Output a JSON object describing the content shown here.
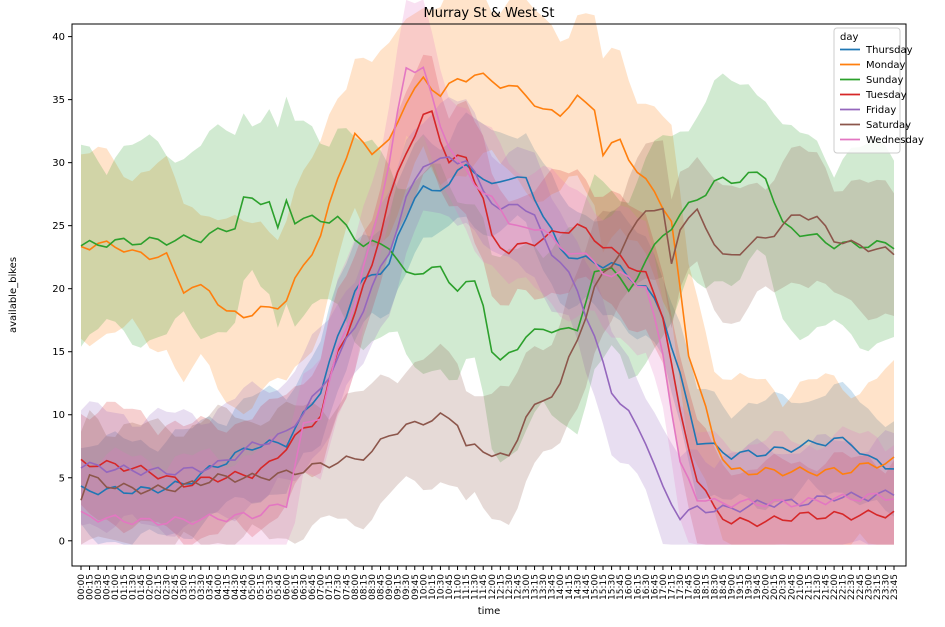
{
  "chart_data": {
    "type": "line",
    "title": "Murray St & West St",
    "xlabel": "time",
    "ylabel": "available_bikes",
    "ylim": [
      -2,
      41
    ],
    "y_ticks": [
      0,
      5,
      10,
      15,
      20,
      25,
      30,
      35,
      40
    ],
    "grid": false,
    "legend": {
      "title": "day",
      "placement": "top-right"
    },
    "x_tick_labels": [
      "00:00",
      "00:15",
      "00:30",
      "00:45",
      "01:00",
      "01:15",
      "01:30",
      "01:45",
      "02:00",
      "02:15",
      "02:30",
      "02:45",
      "03:00",
      "03:15",
      "03:30",
      "03:45",
      "04:00",
      "04:15",
      "04:30",
      "04:45",
      "05:00",
      "05:15",
      "05:30",
      "05:45",
      "06:00",
      "06:15",
      "06:30",
      "06:45",
      "07:00",
      "07:15",
      "07:30",
      "07:45",
      "08:00",
      "08:15",
      "08:30",
      "08:45",
      "09:00",
      "09:15",
      "09:30",
      "09:45",
      "10:00",
      "10:15",
      "10:30",
      "10:45",
      "11:00",
      "11:15",
      "11:30",
      "11:45",
      "12:00",
      "12:15",
      "12:30",
      "12:45",
      "13:00",
      "13:15",
      "13:30",
      "13:45",
      "14:00",
      "14:15",
      "14:30",
      "14:45",
      "15:00",
      "15:15",
      "15:30",
      "15:45",
      "16:00",
      "16:15",
      "16:30",
      "16:45",
      "17:00",
      "17:15",
      "17:30",
      "17:45",
      "18:00",
      "18:15",
      "18:30",
      "18:45",
      "19:00",
      "19:15",
      "19:30",
      "19:45",
      "20:00",
      "20:15",
      "20:30",
      "20:45",
      "21:00",
      "21:15",
      "21:30",
      "21:45",
      "22:00",
      "22:15",
      "22:30",
      "22:45",
      "23:00",
      "23:15",
      "23:30",
      "23:45"
    ],
    "series": [
      {
        "name": "Thursday",
        "color": "#1f77b4",
        "anchors": [
          [
            0,
            4.0
          ],
          [
            8,
            4.0
          ],
          [
            12,
            4.5
          ],
          [
            20,
            7.5
          ],
          [
            24,
            7.8
          ],
          [
            28,
            12
          ],
          [
            32,
            20
          ],
          [
            36,
            22
          ],
          [
            39,
            27.5
          ],
          [
            40,
            28
          ],
          [
            41,
            27.5
          ],
          [
            43,
            28.5
          ],
          [
            45,
            29.7
          ],
          [
            46,
            29.5
          ],
          [
            48,
            28
          ],
          [
            50,
            29
          ],
          [
            52,
            28.5
          ],
          [
            54,
            26
          ],
          [
            56,
            23
          ],
          [
            58,
            22.5
          ],
          [
            60,
            22
          ],
          [
            62,
            22
          ],
          [
            64,
            21
          ],
          [
            66,
            20
          ],
          [
            68,
            18
          ],
          [
            72,
            8
          ],
          [
            76,
            6.8
          ],
          [
            80,
            7
          ],
          [
            84,
            7.5
          ],
          [
            88,
            8
          ],
          [
            90,
            7.8
          ],
          [
            92,
            6.5
          ],
          [
            95,
            5.8
          ]
        ],
        "band_width": 4
      },
      {
        "name": "Monday",
        "color": "#ff7f0e",
        "anchors": [
          [
            0,
            23.4
          ],
          [
            4,
            23.5
          ],
          [
            6,
            22.8
          ],
          [
            10,
            22.5
          ],
          [
            12,
            20
          ],
          [
            15,
            20
          ],
          [
            17,
            18
          ],
          [
            20,
            18
          ],
          [
            24,
            19
          ],
          [
            26,
            22
          ],
          [
            28,
            24
          ],
          [
            30,
            29
          ],
          [
            32,
            32
          ],
          [
            34,
            31
          ],
          [
            36,
            31.5
          ],
          [
            38,
            35
          ],
          [
            40,
            36.5
          ],
          [
            42,
            35.5
          ],
          [
            44,
            36.5
          ],
          [
            46,
            37
          ],
          [
            48,
            36.5
          ],
          [
            50,
            36
          ],
          [
            52,
            35.5
          ],
          [
            54,
            34
          ],
          [
            56,
            34
          ],
          [
            58,
            35
          ],
          [
            60,
            34.5
          ],
          [
            61,
            30.5
          ],
          [
            63,
            32
          ],
          [
            65,
            29
          ],
          [
            67,
            28
          ],
          [
            69,
            25
          ],
          [
            71,
            15
          ],
          [
            74,
            8
          ],
          [
            76,
            5.5
          ],
          [
            80,
            5.5
          ],
          [
            82,
            5.5
          ],
          [
            85,
            5.5
          ],
          [
            89,
            5.5
          ],
          [
            92,
            6
          ],
          [
            95,
            6.3
          ]
        ],
        "band_width": 7
      },
      {
        "name": "Sunday",
        "color": "#2ca02c",
        "anchors": [
          [
            0,
            23.4
          ],
          [
            4,
            23.7
          ],
          [
            10,
            23.8
          ],
          [
            14,
            24
          ],
          [
            18,
            25
          ],
          [
            19,
            27
          ],
          [
            22,
            27
          ],
          [
            23,
            24.5
          ],
          [
            24,
            27
          ],
          [
            25,
            25.5
          ],
          [
            30,
            25.5
          ],
          [
            33,
            23.5
          ],
          [
            36,
            23.5
          ],
          [
            38,
            21
          ],
          [
            40,
            21.5
          ],
          [
            42,
            21.5
          ],
          [
            44,
            20
          ],
          [
            46,
            20.5
          ],
          [
            47,
            19
          ],
          [
            48,
            15
          ],
          [
            49,
            14
          ],
          [
            50,
            15
          ],
          [
            52,
            16
          ],
          [
            54,
            17
          ],
          [
            56,
            16.5
          ],
          [
            58,
            17
          ],
          [
            60,
            21
          ],
          [
            62,
            22
          ],
          [
            64,
            19.5
          ],
          [
            66,
            22.5
          ],
          [
            68,
            24
          ],
          [
            70,
            26
          ],
          [
            72,
            27
          ],
          [
            74,
            28.5
          ],
          [
            76,
            28.5
          ],
          [
            78,
            29
          ],
          [
            80,
            29
          ],
          [
            82,
            25
          ],
          [
            84,
            24.5
          ],
          [
            86,
            24
          ],
          [
            88,
            23.5
          ],
          [
            90,
            23.5
          ],
          [
            92,
            23.5
          ],
          [
            95,
            23.5
          ]
        ],
        "band_width": 7.5
      },
      {
        "name": "Tuesday",
        "color": "#d62728",
        "anchors": [
          [
            0,
            6.2
          ],
          [
            4,
            6
          ],
          [
            8,
            5.5
          ],
          [
            12,
            4.5
          ],
          [
            16,
            5
          ],
          [
            20,
            5.3
          ],
          [
            22,
            6
          ],
          [
            24,
            7.5
          ],
          [
            28,
            10
          ],
          [
            30,
            15
          ],
          [
            32,
            18
          ],
          [
            34,
            22
          ],
          [
            36,
            27
          ],
          [
            38,
            31
          ],
          [
            40,
            33.5
          ],
          [
            41,
            34
          ],
          [
            42,
            32
          ],
          [
            43,
            30
          ],
          [
            45,
            30.5
          ],
          [
            47,
            27
          ],
          [
            48,
            24
          ],
          [
            50,
            23
          ],
          [
            52,
            23.5
          ],
          [
            54,
            24
          ],
          [
            56,
            24.5
          ],
          [
            58,
            25
          ],
          [
            60,
            24
          ],
          [
            62,
            23
          ],
          [
            64,
            22
          ],
          [
            66,
            21
          ],
          [
            68,
            18
          ],
          [
            70,
            10
          ],
          [
            72,
            5
          ],
          [
            74,
            2.5
          ],
          [
            76,
            1.5
          ],
          [
            78,
            1.5
          ],
          [
            80,
            1.5
          ],
          [
            84,
            2
          ],
          [
            90,
            2
          ],
          [
            95,
            2.2
          ]
        ],
        "band_width": 4.5
      },
      {
        "name": "Friday",
        "color": "#9467bd",
        "anchors": [
          [
            0,
            6
          ],
          [
            4,
            5.7
          ],
          [
            8,
            5.5
          ],
          [
            12,
            5.5
          ],
          [
            16,
            6
          ],
          [
            20,
            7.5
          ],
          [
            24,
            8.5
          ],
          [
            28,
            12
          ],
          [
            32,
            17
          ],
          [
            36,
            23
          ],
          [
            38,
            27
          ],
          [
            40,
            30
          ],
          [
            42,
            30
          ],
          [
            43,
            30.5
          ],
          [
            45,
            30
          ],
          [
            47,
            28
          ],
          [
            49,
            26
          ],
          [
            51,
            27
          ],
          [
            53,
            25.5
          ],
          [
            55,
            23
          ],
          [
            56,
            22
          ],
          [
            58,
            20
          ],
          [
            59,
            18
          ],
          [
            60,
            16
          ],
          [
            62,
            12
          ],
          [
            64,
            10
          ],
          [
            66,
            8
          ],
          [
            68,
            4
          ],
          [
            70,
            2
          ],
          [
            72,
            2.5
          ],
          [
            74,
            2.5
          ],
          [
            76,
            2.5
          ],
          [
            80,
            3
          ],
          [
            84,
            3
          ],
          [
            88,
            3.5
          ],
          [
            92,
            3.5
          ],
          [
            95,
            3.8
          ]
        ],
        "band_width": 4.5
      },
      {
        "name": "Saturday",
        "color": "#8c564b",
        "anchors": [
          [
            0,
            3.5
          ],
          [
            1,
            5
          ],
          [
            4,
            4.3
          ],
          [
            8,
            4
          ],
          [
            12,
            4.3
          ],
          [
            16,
            5
          ],
          [
            20,
            5
          ],
          [
            24,
            5.3
          ],
          [
            28,
            6
          ],
          [
            32,
            6.5
          ],
          [
            34,
            7
          ],
          [
            36,
            8.5
          ],
          [
            38,
            9
          ],
          [
            40,
            9.5
          ],
          [
            42,
            9.8
          ],
          [
            44,
            9.5
          ],
          [
            45,
            7.5
          ],
          [
            48,
            7
          ],
          [
            50,
            6.5
          ],
          [
            52,
            10
          ],
          [
            54,
            11
          ],
          [
            56,
            12.5
          ],
          [
            58,
            16
          ],
          [
            60,
            20
          ],
          [
            62,
            22
          ],
          [
            64,
            24
          ],
          [
            66,
            26.5
          ],
          [
            68,
            26
          ],
          [
            69,
            22
          ],
          [
            70,
            25
          ],
          [
            72,
            26
          ],
          [
            73,
            25
          ],
          [
            75,
            22.5
          ],
          [
            76,
            22.5
          ],
          [
            78,
            23.5
          ],
          [
            80,
            24
          ],
          [
            82,
            25
          ],
          [
            84,
            26
          ],
          [
            86,
            25.5
          ],
          [
            88,
            24
          ],
          [
            90,
            23.5
          ],
          [
            92,
            23.3
          ],
          [
            95,
            22.8
          ]
        ],
        "band_width": 5
      },
      {
        "name": "Wednesday",
        "color": "#e377c2",
        "anchors": [
          [
            0,
            2
          ],
          [
            4,
            1.7
          ],
          [
            8,
            1.5
          ],
          [
            12,
            1.6
          ],
          [
            16,
            1.8
          ],
          [
            20,
            2
          ],
          [
            24,
            3
          ],
          [
            26,
            9
          ],
          [
            28,
            10
          ],
          [
            30,
            15
          ],
          [
            32,
            19
          ],
          [
            34,
            24
          ],
          [
            36,
            30
          ],
          [
            38,
            37.5
          ],
          [
            40,
            37.5
          ],
          [
            41,
            35
          ],
          [
            42,
            33
          ],
          [
            44,
            30
          ],
          [
            46,
            28.5
          ],
          [
            48,
            27
          ],
          [
            50,
            25.5
          ],
          [
            52,
            24.5
          ],
          [
            54,
            25
          ],
          [
            56,
            23
          ],
          [
            58,
            23
          ],
          [
            60,
            22
          ],
          [
            62,
            21
          ],
          [
            64,
            21
          ],
          [
            66,
            20
          ],
          [
            68,
            15
          ],
          [
            70,
            6
          ],
          [
            72,
            3.5
          ],
          [
            74,
            3
          ],
          [
            78,
            3
          ],
          [
            80,
            3
          ],
          [
            84,
            3
          ],
          [
            88,
            3.3
          ],
          [
            92,
            3.5
          ],
          [
            95,
            3.5
          ]
        ],
        "band_width": 5
      }
    ]
  }
}
